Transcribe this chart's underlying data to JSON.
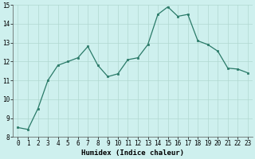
{
  "x": [
    0,
    1,
    2,
    3,
    4,
    5,
    6,
    7,
    8,
    9,
    10,
    11,
    12,
    13,
    14,
    15,
    16,
    17,
    18,
    19,
    20,
    21,
    22,
    23
  ],
  "y": [
    8.5,
    8.4,
    9.5,
    11.0,
    11.8,
    12.0,
    12.2,
    12.8,
    11.8,
    11.2,
    11.35,
    12.1,
    12.2,
    12.9,
    14.5,
    14.9,
    14.4,
    14.5,
    13.1,
    12.9,
    12.55,
    11.65,
    11.6,
    11.4
  ],
  "line_color": "#2a7a68",
  "marker_color": "#2a7a68",
  "bg_color": "#cef0ee",
  "grid_color": "#b0d8d0",
  "xlabel": "Humidex (Indice chaleur)",
  "ylim": [
    8,
    15
  ],
  "xlim_min": -0.5,
  "xlim_max": 23.5,
  "yticks": [
    8,
    9,
    10,
    11,
    12,
    13,
    14,
    15
  ],
  "xticks": [
    0,
    1,
    2,
    3,
    4,
    5,
    6,
    7,
    8,
    9,
    10,
    11,
    12,
    13,
    14,
    15,
    16,
    17,
    18,
    19,
    20,
    21,
    22,
    23
  ],
  "xlabel_fontsize": 6.5,
  "tick_fontsize": 5.5,
  "linewidth": 0.9,
  "markersize": 2.0
}
